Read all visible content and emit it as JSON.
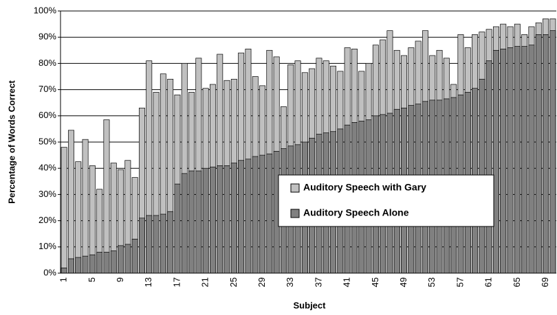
{
  "chart_data": {
    "type": "overlapped_bar",
    "x_label": "Subject",
    "y_label": "Percentage of Words Correct",
    "categories": [
      "1",
      null,
      null,
      null,
      "5",
      null,
      null,
      null,
      "9",
      null,
      null,
      null,
      "13",
      null,
      null,
      null,
      "17",
      null,
      null,
      null,
      "21",
      null,
      null,
      null,
      "25",
      null,
      null,
      null,
      "29",
      null,
      null,
      null,
      "33",
      null,
      null,
      null,
      "37",
      null,
      null,
      null,
      "41",
      null,
      null,
      null,
      "45",
      null,
      null,
      null,
      "49",
      null,
      null,
      null,
      "53",
      null,
      null,
      null,
      "57",
      null,
      null,
      null,
      "61",
      null,
      null,
      null,
      "65",
      null,
      null,
      null,
      "69",
      null
    ],
    "series": [
      {
        "name": "Auditory Speech with Gary",
        "color": "#c0c0c0",
        "values": [
          48,
          54.5,
          42.5,
          51,
          41,
          32,
          58.5,
          42,
          39.5,
          43,
          36.5,
          63,
          81,
          69,
          76,
          74,
          68,
          80,
          69,
          82,
          70.5,
          72,
          83.5,
          73.5,
          74,
          84,
          85.5,
          75,
          71.5,
          85,
          82.5,
          63.5,
          79.5,
          81,
          76.5,
          78,
          82,
          81,
          79,
          77,
          86,
          85.5,
          77,
          80,
          87,
          89,
          92.5,
          85,
          83,
          86,
          88.5,
          92.5,
          83,
          85,
          82,
          72,
          91,
          86,
          91,
          92,
          93,
          94,
          95,
          94,
          95,
          91,
          94,
          95.5,
          97,
          97
        ]
      },
      {
        "name": "Auditory Speech Alone",
        "color": "#808080",
        "values": [
          2,
          5.5,
          6,
          6.5,
          7,
          8,
          8,
          8.5,
          10.5,
          11,
          13,
          21,
          22,
          22,
          22.5,
          23.5,
          34,
          38,
          39,
          39,
          40,
          40.5,
          41,
          41,
          42,
          43,
          43.5,
          44.5,
          45,
          45.5,
          46.5,
          47.5,
          48.5,
          49,
          50,
          51.5,
          53,
          53.5,
          54,
          55,
          56.5,
          57.5,
          58,
          58.5,
          60,
          60.5,
          61,
          62.5,
          63,
          64,
          64.5,
          65.5,
          66,
          66,
          66.5,
          67,
          68,
          69,
          70.5,
          74,
          81,
          85,
          85.5,
          86,
          86.5,
          86.5,
          87,
          91,
          91,
          92.5
        ]
      }
    ],
    "ylim": [
      0,
      100
    ],
    "yticks": [
      {
        "value": 0,
        "label": "0%"
      },
      {
        "value": 10,
        "label": "10%"
      },
      {
        "value": 20,
        "label": "20%"
      },
      {
        "value": 30,
        "label": "30%"
      },
      {
        "value": 40,
        "label": "40%"
      },
      {
        "value": 50,
        "label": "50%"
      },
      {
        "value": 60,
        "label": "60%"
      },
      {
        "value": 70,
        "label": "70%"
      },
      {
        "value": 80,
        "label": "80%"
      },
      {
        "value": 90,
        "label": "90%"
      },
      {
        "value": 100,
        "label": "100%"
      }
    ],
    "grid": true,
    "legend": "lower-center"
  }
}
